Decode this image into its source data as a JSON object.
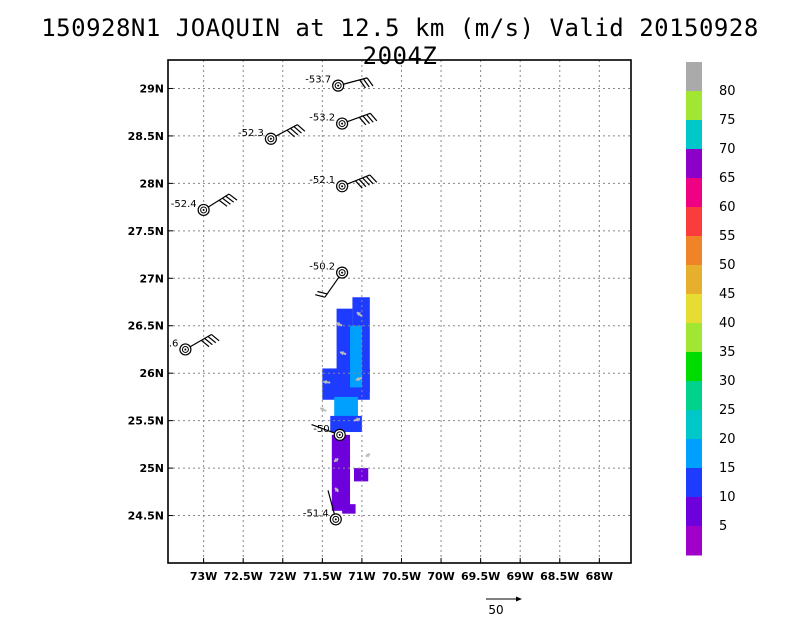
{
  "chart_data": {
    "type": "map-wind-plot",
    "title": "150928N1 JOAQUIN at 12.5 km (m/s) Valid 20150928 2004Z",
    "x_ticks": [
      "73W",
      "72.5W",
      "72W",
      "71.5W",
      "71W",
      "70.5W",
      "70W",
      "69.5W",
      "69W",
      "68.5W",
      "68W"
    ],
    "x_tick_values": [
      -73,
      -72.5,
      -72,
      -71.5,
      -71,
      -70.5,
      -70,
      -69.5,
      -69,
      -68.5,
      -68
    ],
    "y_ticks": [
      "24.5N",
      "25N",
      "25.5N",
      "26N",
      "26.5N",
      "27N",
      "27.5N",
      "28N",
      "28.5N",
      "29N"
    ],
    "y_tick_values": [
      24.5,
      25,
      25.5,
      26,
      26.5,
      27,
      27.5,
      28,
      28.5,
      29
    ],
    "xlim": [
      -73.45,
      -67.6
    ],
    "ylim": [
      24.0,
      29.3
    ],
    "grid": true,
    "colorbar": {
      "labels": [
        "5",
        "10",
        "15",
        "20",
        "25",
        "30",
        "35",
        "40",
        "45",
        "50",
        "55",
        "60",
        "65",
        "70",
        "75",
        "80"
      ],
      "colors": [
        "#a000c8",
        "#6e00dc",
        "#1e3cff",
        "#00a0ff",
        "#00c8c8",
        "#00d28c",
        "#00dc00",
        "#a0e632",
        "#e6dc32",
        "#e6af2d",
        "#f08228",
        "#fa3c3c",
        "#f00082",
        "#8c00c8",
        "#00c8c8",
        "#a0e632",
        "#aaaaaa"
      ]
    },
    "vector_scale_label": "50",
    "stations": [
      {
        "lon": -71.3,
        "lat": 29.03,
        "label": "-53.7",
        "wind_dir": 75,
        "barbs": 3
      },
      {
        "lon": -71.25,
        "lat": 28.63,
        "label": "-53.2",
        "wind_dir": 70,
        "barbs": 4
      },
      {
        "lon": -72.15,
        "lat": 28.47,
        "label": "-52.3",
        "wind_dir": 62,
        "barbs": 4
      },
      {
        "lon": -71.25,
        "lat": 27.97,
        "label": "-52.1",
        "wind_dir": 68,
        "barbs": 5
      },
      {
        "lon": -73.0,
        "lat": 27.72,
        "label": "-52.4",
        "wind_dir": 58,
        "barbs": 4
      },
      {
        "lon": -71.25,
        "lat": 27.06,
        "label": "-50.2",
        "wind_dir": 215,
        "barbs": 2
      },
      {
        "lon": -73.23,
        "lat": 26.25,
        "label": ".6",
        "wind_dir": 60,
        "barbs": 4
      },
      {
        "lon": -71.28,
        "lat": 25.35,
        "label": "-50.",
        "wind_dir": 290,
        "barbs": 0
      },
      {
        "lon": -71.33,
        "lat": 24.46,
        "label": "-51.4",
        "wind_dir": 345,
        "barbs": 0
      }
    ],
    "cells": [
      {
        "lon0": -71.32,
        "lon1": -71.12,
        "lat0": 26.0,
        "lat1": 26.68,
        "bin": 2
      },
      {
        "lon0": -71.12,
        "lon1": -70.9,
        "lat0": 25.8,
        "lat1": 26.8,
        "bin": 2
      },
      {
        "lon0": -71.5,
        "lon1": -70.9,
        "lat0": 25.72,
        "lat1": 26.05,
        "bin": 2
      },
      {
        "lon0": -71.15,
        "lon1": -71.0,
        "lat0": 25.85,
        "lat1": 26.5,
        "bin": 3
      },
      {
        "lon0": -71.35,
        "lon1": -71.05,
        "lat0": 25.45,
        "lat1": 25.75,
        "bin": 3
      },
      {
        "lon0": -71.4,
        "lon1": -71.0,
        "lat0": 25.38,
        "lat1": 25.55,
        "bin": 2
      },
      {
        "lon0": -71.38,
        "lon1": -71.15,
        "lat0": 24.55,
        "lat1": 25.35,
        "bin": 1
      },
      {
        "lon0": -71.1,
        "lon1": -70.92,
        "lat0": 24.86,
        "lat1": 25.0,
        "bin": 1
      },
      {
        "lon0": -71.25,
        "lon1": -71.08,
        "lat0": 24.52,
        "lat1": 24.62,
        "bin": 1
      }
    ],
    "vectors": [
      {
        "lon": -71.25,
        "lat": 26.5,
        "u": -6,
        "v": 3
      },
      {
        "lon": -71.0,
        "lat": 26.6,
        "u": -5,
        "v": 4
      },
      {
        "lon": -71.2,
        "lat": 26.2,
        "u": -6,
        "v": 2
      },
      {
        "lon": -71.4,
        "lat": 25.9,
        "u": -7,
        "v": 1
      },
      {
        "lon": -71.0,
        "lat": 25.95,
        "u": -6,
        "v": -2
      },
      {
        "lon": -71.45,
        "lat": 25.6,
        "u": -6,
        "v": 3
      },
      {
        "lon": -71.1,
        "lat": 25.5,
        "u": 6,
        "v": 2
      },
      {
        "lon": -71.3,
        "lat": 25.1,
        "u": -4,
        "v": -3
      },
      {
        "lon": -70.95,
        "lat": 25.12,
        "u": 4,
        "v": 3
      },
      {
        "lon": -71.3,
        "lat": 24.75,
        "u": -3,
        "v": 4
      }
    ]
  }
}
